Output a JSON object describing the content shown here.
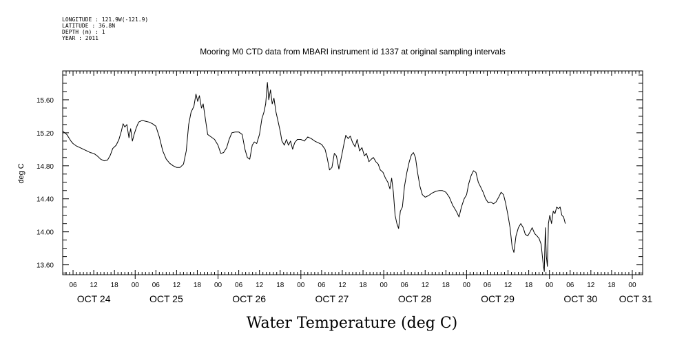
{
  "header": {
    "longitude": "LONGITUDE : 121.9W(-121.9)",
    "latitude": "LATITUDE : 36.8N",
    "depth": "DEPTH (m) : 1",
    "year": "YEAR : 2011"
  },
  "chart_data": {
    "type": "line",
    "title": "Mooring M0 CTD data from MBARI instrument id 1337 at original sampling intervals",
    "xlabel": "Water Temperature (deg C)",
    "ylabel": "deg C",
    "ylim": [
      13.48,
      15.95
    ],
    "yticks": [
      13.6,
      14.0,
      14.4,
      14.8,
      15.2,
      15.6
    ],
    "ytick_labels": [
      "13.60",
      "14.00",
      "14.40",
      "14.80",
      "15.20",
      "15.60"
    ],
    "xlim_hours": [
      3,
      171
    ],
    "hour_ticks": [
      {
        "h": 6,
        "label": "06"
      },
      {
        "h": 12,
        "label": "12"
      },
      {
        "h": 18,
        "label": "18"
      },
      {
        "h": 24,
        "label": "00"
      },
      {
        "h": 30,
        "label": "06"
      },
      {
        "h": 36,
        "label": "12"
      },
      {
        "h": 42,
        "label": "18"
      },
      {
        "h": 48,
        "label": "00"
      },
      {
        "h": 54,
        "label": "06"
      },
      {
        "h": 60,
        "label": "12"
      },
      {
        "h": 66,
        "label": "18"
      },
      {
        "h": 72,
        "label": "00"
      },
      {
        "h": 78,
        "label": "06"
      },
      {
        "h": 84,
        "label": "12"
      },
      {
        "h": 90,
        "label": "18"
      },
      {
        "h": 96,
        "label": "00"
      },
      {
        "h": 102,
        "label": "06"
      },
      {
        "h": 108,
        "label": "12"
      },
      {
        "h": 114,
        "label": "18"
      },
      {
        "h": 120,
        "label": "00"
      },
      {
        "h": 126,
        "label": "06"
      },
      {
        "h": 132,
        "label": "12"
      },
      {
        "h": 138,
        "label": "18"
      },
      {
        "h": 144,
        "label": "00"
      },
      {
        "h": 150,
        "label": "06"
      },
      {
        "h": 156,
        "label": "12"
      },
      {
        "h": 162,
        "label": "18"
      },
      {
        "h": 168,
        "label": "00"
      }
    ],
    "day_labels": [
      {
        "h": 12,
        "label": "OCT 24"
      },
      {
        "h": 33,
        "label": "OCT 25"
      },
      {
        "h": 57,
        "label": "OCT 26"
      },
      {
        "h": 81,
        "label": "OCT 27"
      },
      {
        "h": 105,
        "label": "OCT 28"
      },
      {
        "h": 129,
        "label": "OCT 29"
      },
      {
        "h": 153,
        "label": "OCT 30"
      },
      {
        "h": 169,
        "label": "OCT 31"
      }
    ],
    "series": [
      {
        "points": [
          [
            3,
            15.22
          ],
          [
            3.6,
            15.2
          ],
          [
            4.2,
            15.18
          ],
          [
            4.8,
            15.14
          ],
          [
            5.4,
            15.1
          ],
          [
            6,
            15.07
          ],
          [
            7,
            15.04
          ],
          [
            8,
            15.02
          ],
          [
            9,
            15.0
          ],
          [
            10,
            14.98
          ],
          [
            11,
            14.96
          ],
          [
            12,
            14.95
          ],
          [
            13,
            14.92
          ],
          [
            14,
            14.88
          ],
          [
            15,
            14.86
          ],
          [
            16,
            14.87
          ],
          [
            16.8,
            14.93
          ],
          [
            17.5,
            15.01
          ],
          [
            18.5,
            15.05
          ],
          [
            19.3,
            15.12
          ],
          [
            20,
            15.22
          ],
          [
            20.5,
            15.31
          ],
          [
            21,
            15.27
          ],
          [
            21.6,
            15.3
          ],
          [
            22.2,
            15.14
          ],
          [
            22.7,
            15.25
          ],
          [
            23.2,
            15.1
          ],
          [
            23.7,
            15.18
          ],
          [
            24.3,
            15.26
          ],
          [
            25,
            15.33
          ],
          [
            26,
            15.35
          ],
          [
            27,
            15.34
          ],
          [
            28,
            15.33
          ],
          [
            29,
            15.31
          ],
          [
            30,
            15.28
          ],
          [
            31,
            15.15
          ],
          [
            32,
            14.98
          ],
          [
            33,
            14.88
          ],
          [
            34,
            14.83
          ],
          [
            35,
            14.8
          ],
          [
            36,
            14.78
          ],
          [
            37,
            14.78
          ],
          [
            38,
            14.82
          ],
          [
            38.8,
            14.98
          ],
          [
            39.5,
            15.3
          ],
          [
            40.2,
            15.45
          ],
          [
            41,
            15.52
          ],
          [
            41.6,
            15.67
          ],
          [
            42.1,
            15.58
          ],
          [
            42.6,
            15.65
          ],
          [
            43.2,
            15.5
          ],
          [
            43.7,
            15.55
          ],
          [
            44.4,
            15.35
          ],
          [
            45,
            15.18
          ],
          [
            46,
            15.15
          ],
          [
            47,
            15.12
          ],
          [
            48,
            15.05
          ],
          [
            48.8,
            14.95
          ],
          [
            49.6,
            14.96
          ],
          [
            50.5,
            15.02
          ],
          [
            51.2,
            15.12
          ],
          [
            52,
            15.2
          ],
          [
            53,
            15.21
          ],
          [
            54,
            15.21
          ],
          [
            55,
            15.18
          ],
          [
            55.8,
            15.0
          ],
          [
            56.5,
            14.9
          ],
          [
            57.2,
            14.88
          ],
          [
            57.9,
            15.05
          ],
          [
            58.5,
            15.09
          ],
          [
            59.2,
            15.07
          ],
          [
            60,
            15.18
          ],
          [
            60.7,
            15.37
          ],
          [
            61.3,
            15.45
          ],
          [
            61.8,
            15.55
          ],
          [
            62.3,
            15.81
          ],
          [
            62.7,
            15.6
          ],
          [
            63.2,
            15.72
          ],
          [
            63.7,
            15.55
          ],
          [
            64.2,
            15.62
          ],
          [
            64.8,
            15.45
          ],
          [
            65.5,
            15.32
          ],
          [
            66,
            15.22
          ],
          [
            66.5,
            15.1
          ],
          [
            67.2,
            15.05
          ],
          [
            67.8,
            15.12
          ],
          [
            68.4,
            15.05
          ],
          [
            69,
            15.1
          ],
          [
            69.6,
            15.0
          ],
          [
            70.2,
            15.08
          ],
          [
            71,
            15.12
          ],
          [
            72,
            15.12
          ],
          [
            73,
            15.1
          ],
          [
            74,
            15.15
          ],
          [
            75,
            15.13
          ],
          [
            76,
            15.1
          ],
          [
            77,
            15.08
          ],
          [
            78,
            15.06
          ],
          [
            79,
            15.0
          ],
          [
            79.6,
            14.9
          ],
          [
            80.3,
            14.75
          ],
          [
            81,
            14.78
          ],
          [
            81.7,
            14.95
          ],
          [
            82.3,
            14.92
          ],
          [
            83,
            14.76
          ],
          [
            83.7,
            14.9
          ],
          [
            84.4,
            15.05
          ],
          [
            85,
            15.17
          ],
          [
            85.7,
            15.13
          ],
          [
            86.3,
            15.16
          ],
          [
            87,
            15.08
          ],
          [
            87.7,
            15.03
          ],
          [
            88.3,
            15.12
          ],
          [
            89,
            14.98
          ],
          [
            89.7,
            15.02
          ],
          [
            90.4,
            14.92
          ],
          [
            91,
            14.95
          ],
          [
            91.7,
            14.85
          ],
          [
            92.4,
            14.88
          ],
          [
            93,
            14.9
          ],
          [
            93.7,
            14.85
          ],
          [
            94.4,
            14.82
          ],
          [
            95,
            14.75
          ],
          [
            95.8,
            14.72
          ],
          [
            96.5,
            14.65
          ],
          [
            97.2,
            14.6
          ],
          [
            97.8,
            14.52
          ],
          [
            98.3,
            14.65
          ],
          [
            98.8,
            14.48
          ],
          [
            99.3,
            14.2
          ],
          [
            99.8,
            14.1
          ],
          [
            100.3,
            14.04
          ],
          [
            100.8,
            14.25
          ],
          [
            101.4,
            14.3
          ],
          [
            102,
            14.55
          ],
          [
            102.7,
            14.72
          ],
          [
            103.4,
            14.85
          ],
          [
            104,
            14.93
          ],
          [
            104.6,
            14.96
          ],
          [
            105.2,
            14.9
          ],
          [
            105.8,
            14.72
          ],
          [
            106.5,
            14.55
          ],
          [
            107.2,
            14.45
          ],
          [
            108,
            14.42
          ],
          [
            109,
            14.44
          ],
          [
            110,
            14.47
          ],
          [
            111,
            14.49
          ],
          [
            112,
            14.5
          ],
          [
            113,
            14.5
          ],
          [
            114,
            14.48
          ],
          [
            115,
            14.42
          ],
          [
            116,
            14.32
          ],
          [
            117,
            14.25
          ],
          [
            117.8,
            14.18
          ],
          [
            118.5,
            14.3
          ],
          [
            119.3,
            14.4
          ],
          [
            120,
            14.45
          ],
          [
            120.6,
            14.58
          ],
          [
            121.3,
            14.68
          ],
          [
            122,
            14.74
          ],
          [
            122.7,
            14.72
          ],
          [
            123.4,
            14.6
          ],
          [
            124,
            14.55
          ],
          [
            124.8,
            14.48
          ],
          [
            125.5,
            14.4
          ],
          [
            126.3,
            14.35
          ],
          [
            127,
            14.36
          ],
          [
            127.8,
            14.34
          ],
          [
            128.5,
            14.36
          ],
          [
            129.3,
            14.42
          ],
          [
            130,
            14.48
          ],
          [
            130.7,
            14.45
          ],
          [
            131.3,
            14.35
          ],
          [
            132,
            14.2
          ],
          [
            132.6,
            14.05
          ],
          [
            133.2,
            13.82
          ],
          [
            133.7,
            13.75
          ],
          [
            134.3,
            13.95
          ],
          [
            135,
            14.05
          ],
          [
            135.7,
            14.1
          ],
          [
            136.4,
            14.05
          ],
          [
            137,
            13.97
          ],
          [
            137.7,
            13.95
          ],
          [
            138.4,
            14.0
          ],
          [
            139,
            14.05
          ],
          [
            139.7,
            13.98
          ],
          [
            140.4,
            13.95
          ],
          [
            141,
            13.92
          ],
          [
            141.6,
            13.85
          ],
          [
            142.2,
            13.6
          ],
          [
            142.5,
            13.52
          ],
          [
            142.8,
            14.05
          ],
          [
            143.1,
            13.7
          ],
          [
            143.4,
            13.58
          ],
          [
            143.7,
            14.1
          ],
          [
            144.1,
            14.2
          ],
          [
            144.6,
            14.1
          ],
          [
            145.1,
            14.25
          ],
          [
            145.6,
            14.22
          ],
          [
            146.1,
            14.3
          ],
          [
            146.6,
            14.28
          ],
          [
            147.1,
            14.3
          ],
          [
            147.6,
            14.2
          ],
          [
            148.1,
            14.18
          ],
          [
            148.6,
            14.1
          ]
        ]
      }
    ]
  }
}
